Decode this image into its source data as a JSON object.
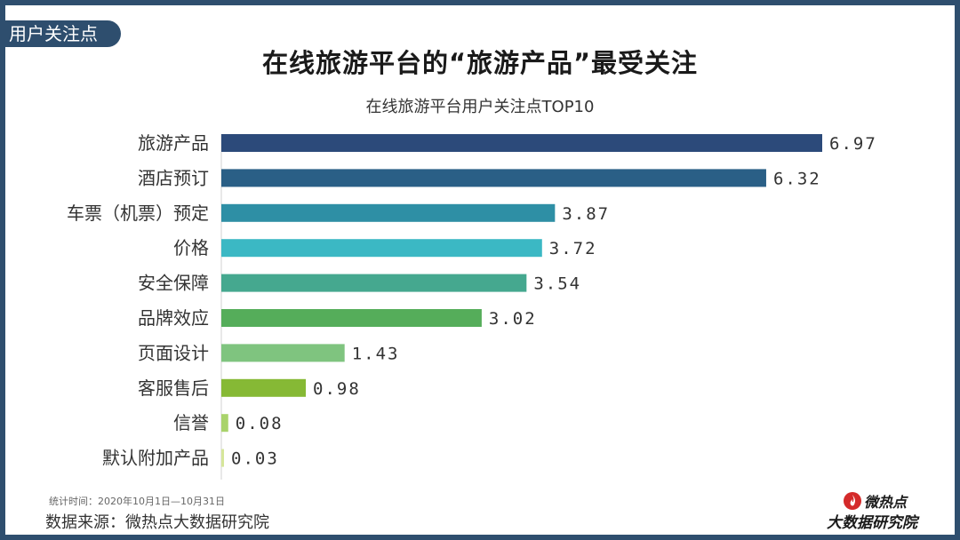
{
  "section_tag": "用户关注点",
  "chart_data": {
    "type": "bar",
    "orientation": "horizontal",
    "title": "在线旅游平台的“旅游产品”最受关注",
    "subtitle": "在线旅游平台用户关注点TOP10",
    "categories": [
      "旅游产品",
      "酒店预订",
      "车票（机票）预定",
      "价格",
      "安全保障",
      "品牌效应",
      "页面设计",
      "客服售后",
      "信誉",
      "默认附加产品"
    ],
    "values": [
      6.97,
      6.32,
      3.87,
      3.72,
      3.54,
      3.02,
      1.43,
      0.98,
      0.08,
      0.03
    ],
    "value_labels": [
      "6.97",
      "6.32",
      "3.87",
      "3.72",
      "3.54",
      "3.02",
      "1.43",
      "0.98",
      "0.08",
      "0.03"
    ],
    "colors": [
      "#2c4a7a",
      "#2a5f86",
      "#2e8fa5",
      "#3bb8c4",
      "#45a88f",
      "#55ad5a",
      "#7fc47f",
      "#86b935",
      "#a9d36b",
      "#d6e69a"
    ],
    "xlim": [
      0,
      6.97
    ],
    "grid": false,
    "legend": "none"
  },
  "footer": {
    "note": "统计时间：2020年10月1日—10月31日",
    "source": "数据来源：微热点大数据研究院"
  },
  "logo": {
    "name": "微热点",
    "subtitle": "大数据研究院",
    "accent": "#d42a2a"
  }
}
